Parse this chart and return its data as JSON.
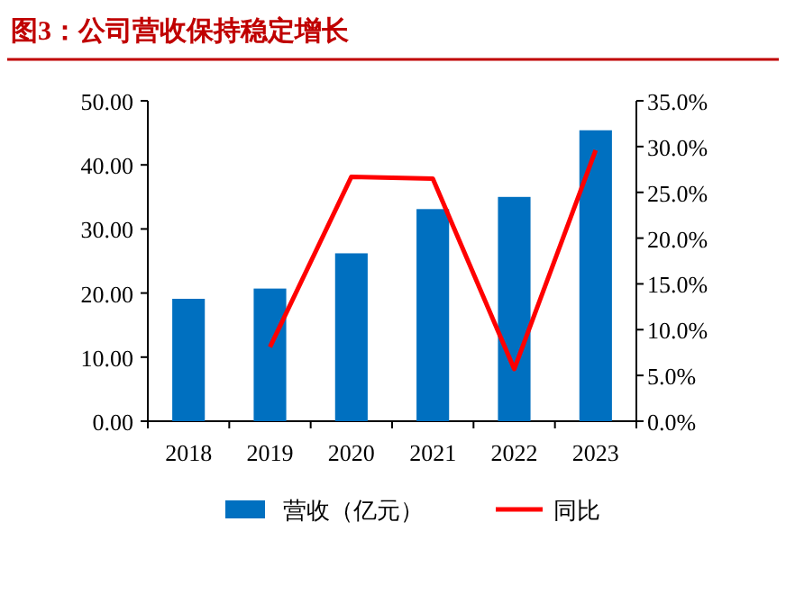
{
  "chart_data": {
    "type": "bar",
    "title": "图3：公司营收保持稳定增长",
    "categories": [
      "2018",
      "2019",
      "2020",
      "2021",
      "2022",
      "2023"
    ],
    "series": [
      {
        "name": "营收（亿元）",
        "color": "#0070c0",
        "values": [
          19.1,
          20.7,
          26.2,
          33.1,
          35.0,
          45.4
        ]
      },
      {
        "name": "同比",
        "type": "line",
        "axis": "y2",
        "color": "#ff0000",
        "values": [
          null,
          8.1,
          26.7,
          26.5,
          5.7,
          29.6
        ]
      }
    ],
    "ylim": [
      0,
      50
    ],
    "yticks": [
      {
        "value": 0,
        "label": "0.00"
      },
      {
        "value": 10,
        "label": "10.00"
      },
      {
        "value": 20,
        "label": "20.00"
      },
      {
        "value": 30,
        "label": "30.00"
      },
      {
        "value": 40,
        "label": "40.00"
      },
      {
        "value": 50,
        "label": "50.00"
      }
    ],
    "y2lim": [
      0,
      35
    ],
    "y2ticks": [
      {
        "value": 0,
        "label": "0.0%"
      },
      {
        "value": 5,
        "label": "5.0%"
      },
      {
        "value": 10,
        "label": "10.0%"
      },
      {
        "value": 15,
        "label": "15.0%"
      },
      {
        "value": 20,
        "label": "20.0%"
      },
      {
        "value": 25,
        "label": "25.0%"
      },
      {
        "value": 30,
        "label": "30.0%"
      },
      {
        "value": 35,
        "label": "35.0%"
      }
    ],
    "grid": false,
    "legend": "bottom",
    "marker": "none"
  }
}
